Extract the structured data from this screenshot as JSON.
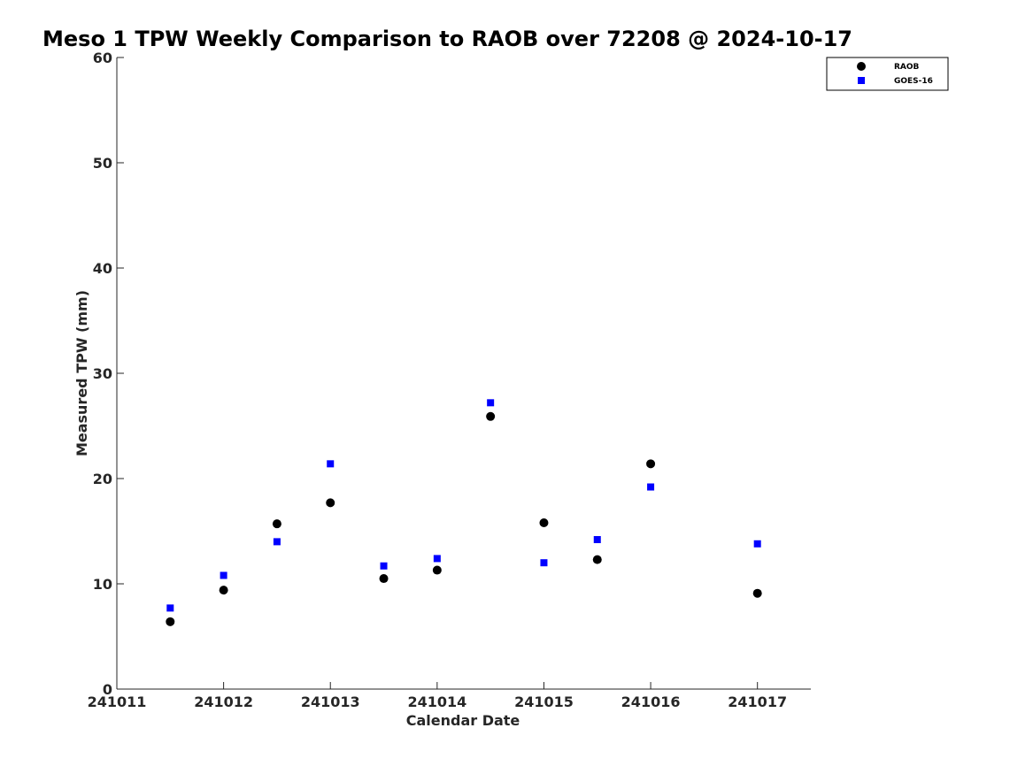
{
  "chart_data": {
    "type": "scatter",
    "title": "Meso 1 TPW Weekly Comparison to RAOB over 72208 @ 2024-10-17",
    "xlabel": "Calendar Date",
    "ylabel": "Measured TPW (mm)",
    "xlim": [
      241011,
      241017.5
    ],
    "ylim": [
      0,
      60
    ],
    "x_ticks": [
      241011,
      241012,
      241013,
      241014,
      241015,
      241016,
      241017
    ],
    "x_tick_labels": [
      "241011",
      "241012",
      "241013",
      "241014",
      "241015",
      "241016",
      "241017"
    ],
    "y_ticks": [
      0,
      10,
      20,
      30,
      40,
      50,
      60
    ],
    "y_tick_labels": [
      "0",
      "10",
      "20",
      "30",
      "40",
      "50",
      "60"
    ],
    "grid": false,
    "legend_position": "top-right",
    "series": [
      {
        "name": "RAOB",
        "marker": "circle",
        "color": "#000000",
        "x": [
          241011.5,
          241012,
          241012.5,
          241013,
          241013.5,
          241014,
          241014.5,
          241015,
          241015.5,
          241016,
          241017
        ],
        "y": [
          6.4,
          9.4,
          15.7,
          17.7,
          10.5,
          11.3,
          25.9,
          15.8,
          12.3,
          21.4,
          9.1
        ]
      },
      {
        "name": "GOES-16",
        "marker": "square",
        "color": "#0000ff",
        "x": [
          241011.5,
          241012,
          241012.5,
          241013,
          241013.5,
          241014,
          241014.5,
          241015,
          241015.5,
          241016,
          241017
        ],
        "y": [
          7.7,
          10.8,
          14.0,
          21.4,
          11.7,
          12.4,
          27.2,
          12.0,
          14.2,
          19.2,
          13.8
        ]
      }
    ]
  }
}
